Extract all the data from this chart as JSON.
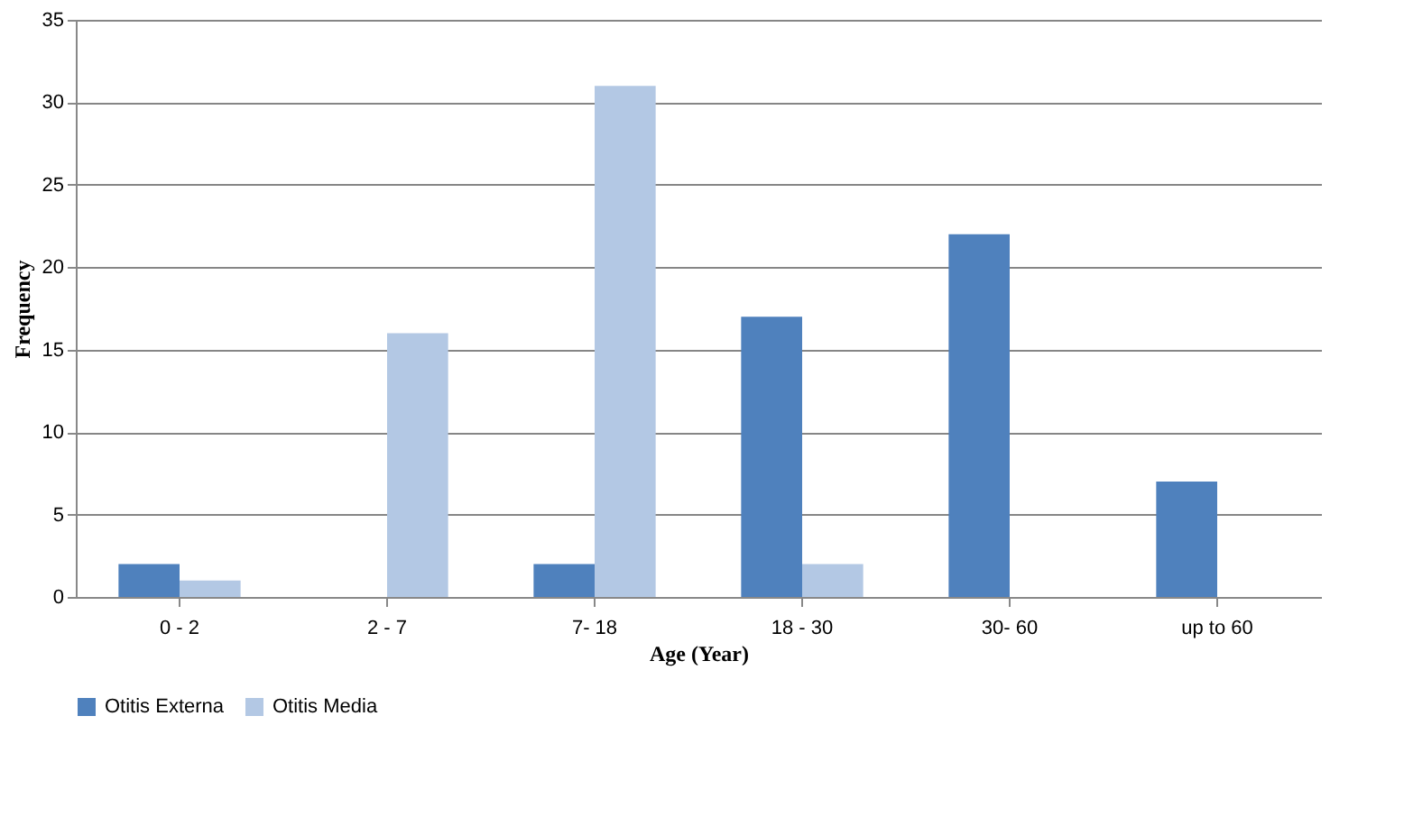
{
  "chart_data": {
    "type": "bar",
    "xlabel": "Age (Year)",
    "ylabel": "Frequency",
    "categories": [
      "0 - 2",
      "2 - 7",
      "7- 18",
      "18 - 30",
      "30- 60",
      "up to 60"
    ],
    "series": [
      {
        "name": "Otitis Externa",
        "color": "#4f81bd",
        "values": [
          2,
          0,
          2,
          17,
          22,
          7
        ]
      },
      {
        "name": "Otitis Media",
        "color": "#b3c8e4",
        "values": [
          1,
          16,
          31,
          2,
          0,
          0
        ]
      }
    ],
    "ylim": [
      0,
      35
    ],
    "yticks": [
      0,
      5,
      10,
      15,
      20,
      25,
      30,
      35
    ],
    "grid": "y",
    "legend": "bottom"
  }
}
